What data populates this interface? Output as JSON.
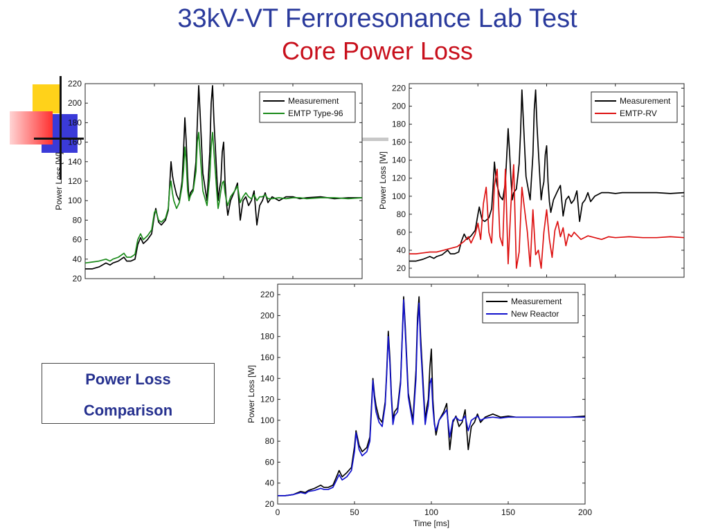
{
  "slide": {
    "title": "33kV-VT Ferroresonance Lab Test",
    "subtitle": "Core Power Loss",
    "callout_line1": "Power Loss",
    "callout_line2": "Comparison"
  },
  "colors": {
    "title": "#2a3a9c",
    "subtitle": "#c8101c",
    "measurement": "#000000",
    "emtp_type96": "#1a8a1a",
    "emtp_rv": "#dd1111",
    "new_reactor": "#1010cc"
  },
  "chart_data": [
    {
      "type": "line",
      "title": "",
      "xlabel": "",
      "ylabel": "Power Loss [W]",
      "xlim": [
        0,
        200
      ],
      "ylim": [
        20,
        220
      ],
      "yticks": [
        20,
        40,
        60,
        80,
        100,
        120,
        140,
        160,
        180,
        200,
        220
      ],
      "xticks": [],
      "legend": "top-right",
      "series": [
        {
          "name": "Measurement",
          "color": "#000000",
          "x": [
            0,
            5,
            10,
            15,
            18,
            20,
            24,
            28,
            30,
            33,
            36,
            38,
            40,
            42,
            45,
            48,
            50,
            51,
            53,
            55,
            58,
            60,
            61,
            62,
            63,
            64,
            66,
            68,
            70,
            71,
            72,
            73,
            74,
            75,
            76,
            78,
            80,
            81,
            82,
            83,
            85,
            88,
            90,
            91,
            92,
            93,
            95,
            96,
            97,
            98,
            99,
            100,
            101,
            102,
            103,
            105,
            108,
            110,
            112,
            114,
            116,
            118,
            120,
            122,
            124,
            126,
            128,
            130,
            132,
            135,
            140,
            145,
            150,
            155,
            160,
            170,
            180,
            190,
            200
          ],
          "y": [
            30,
            30,
            32,
            36,
            34,
            36,
            38,
            42,
            38,
            38,
            40,
            55,
            62,
            56,
            60,
            66,
            85,
            92,
            78,
            75,
            80,
            90,
            115,
            140,
            126,
            118,
            106,
            100,
            120,
            150,
            185,
            160,
            125,
            100,
            108,
            112,
            140,
            180,
            218,
            190,
            128,
            100,
            150,
            200,
            218,
            182,
            128,
            100,
            112,
            120,
            150,
            160,
            120,
            98,
            85,
            100,
            110,
            118,
            80,
            100,
            104,
            95,
            100,
            110,
            75,
            95,
            100,
            108,
            98,
            104,
            100,
            104,
            104,
            102,
            103,
            104,
            102,
            103,
            103
          ]
        },
        {
          "name": "EMTP Type-96",
          "color": "#1a8a1a",
          "x": [
            0,
            5,
            10,
            15,
            18,
            20,
            24,
            28,
            30,
            33,
            36,
            38,
            40,
            42,
            45,
            48,
            50,
            51,
            53,
            55,
            58,
            60,
            61,
            62,
            63,
            64,
            66,
            68,
            70,
            71,
            72,
            73,
            74,
            75,
            76,
            78,
            80,
            81,
            82,
            83,
            85,
            88,
            90,
            91,
            92,
            93,
            95,
            96,
            97,
            98,
            99,
            100,
            101,
            102,
            103,
            105,
            108,
            110,
            112,
            114,
            116,
            118,
            120,
            122,
            124,
            126,
            128,
            130,
            132,
            135,
            140,
            145,
            150,
            155,
            160,
            170,
            180,
            190,
            200
          ],
          "y": [
            36,
            37,
            38,
            40,
            38,
            40,
            42,
            46,
            42,
            42,
            45,
            60,
            66,
            60,
            64,
            70,
            88,
            90,
            80,
            78,
            82,
            92,
            112,
            120,
            108,
            100,
            92,
            98,
            115,
            130,
            155,
            140,
            110,
            100,
            105,
            110,
            130,
            160,
            170,
            150,
            110,
            95,
            125,
            155,
            170,
            150,
            110,
            92,
            100,
            110,
            118,
            120,
            108,
            100,
            95,
            104,
            110,
            115,
            98,
            104,
            108,
            104,
            102,
            106,
            100,
            104,
            104,
            106,
            102,
            102,
            103,
            102,
            103,
            103,
            102,
            103,
            103,
            102,
            103
          ]
        }
      ]
    },
    {
      "type": "line",
      "title": "",
      "xlabel": "",
      "ylabel": "Power Loss [W]",
      "xlim": [
        0,
        200
      ],
      "ylim": [
        10,
        225
      ],
      "yticks": [
        20,
        40,
        60,
        80,
        100,
        120,
        140,
        160,
        180,
        200,
        220
      ],
      "xticks": [],
      "legend": "top-right",
      "series": [
        {
          "name": "Measurement",
          "color": "#000000",
          "x": [
            0,
            5,
            10,
            15,
            18,
            20,
            24,
            28,
            30,
            33,
            36,
            38,
            40,
            42,
            45,
            48,
            50,
            51,
            53,
            55,
            58,
            60,
            61,
            62,
            63,
            64,
            66,
            68,
            70,
            71,
            72,
            73,
            74,
            75,
            76,
            78,
            80,
            81,
            82,
            83,
            85,
            88,
            90,
            91,
            92,
            93,
            95,
            96,
            97,
            98,
            99,
            100,
            101,
            102,
            103,
            105,
            108,
            110,
            112,
            114,
            116,
            118,
            120,
            122,
            124,
            126,
            128,
            130,
            132,
            135,
            140,
            145,
            150,
            155,
            160,
            170,
            180,
            190,
            200
          ],
          "y": [
            28,
            28,
            30,
            33,
            31,
            33,
            35,
            40,
            36,
            36,
            38,
            50,
            58,
            52,
            56,
            62,
            80,
            88,
            74,
            72,
            76,
            86,
            110,
            138,
            122,
            112,
            100,
            96,
            115,
            145,
            175,
            150,
            120,
            96,
            104,
            108,
            136,
            170,
            218,
            186,
            122,
            96,
            146,
            196,
            218,
            178,
            122,
            96,
            108,
            116,
            146,
            156,
            116,
            94,
            82,
            96,
            106,
            112,
            78,
            96,
            100,
            92,
            96,
            106,
            72,
            92,
            96,
            104,
            94,
            100,
            104,
            104,
            103,
            104,
            104,
            104,
            104,
            103,
            104
          ]
        },
        {
          "name": "EMTP-RV",
          "color": "#dd1111",
          "x": [
            0,
            5,
            10,
            15,
            20,
            25,
            30,
            35,
            40,
            43,
            45,
            48,
            50,
            52,
            54,
            56,
            58,
            60,
            62,
            64,
            66,
            68,
            70,
            72,
            74,
            76,
            78,
            80,
            82,
            84,
            86,
            88,
            90,
            92,
            94,
            96,
            98,
            100,
            102,
            104,
            106,
            108,
            110,
            112,
            114,
            116,
            118,
            120,
            125,
            130,
            135,
            140,
            145,
            150,
            160,
            170,
            180,
            190,
            200
          ],
          "y": [
            36,
            36,
            37,
            38,
            38,
            40,
            42,
            44,
            50,
            55,
            48,
            58,
            70,
            52,
            92,
            110,
            60,
            48,
            112,
            130,
            55,
            45,
            130,
            25,
            90,
            135,
            20,
            38,
            110,
            85,
            60,
            22,
            85,
            35,
            40,
            20,
            60,
            85,
            52,
            32,
            62,
            72,
            55,
            65,
            45,
            58,
            55,
            60,
            52,
            56,
            54,
            52,
            55,
            54,
            55,
            54,
            54,
            55,
            54
          ]
        }
      ]
    },
    {
      "type": "line",
      "title": "",
      "xlabel": "Time [ms]",
      "ylabel": "Power Loss [W]",
      "xlim": [
        0,
        200
      ],
      "ylim": [
        20,
        230
      ],
      "yticks": [
        20,
        40,
        60,
        80,
        100,
        120,
        140,
        160,
        180,
        200,
        220
      ],
      "xticks": [
        0,
        50,
        100,
        150,
        200
      ],
      "legend": "top-right",
      "series": [
        {
          "name": "Measurement",
          "color": "#000000",
          "x": [
            0,
            5,
            10,
            15,
            18,
            20,
            24,
            28,
            30,
            33,
            36,
            38,
            40,
            42,
            45,
            48,
            50,
            51,
            53,
            55,
            58,
            60,
            61,
            62,
            63,
            64,
            66,
            68,
            70,
            71,
            72,
            73,
            74,
            75,
            76,
            78,
            80,
            81,
            82,
            83,
            85,
            88,
            90,
            91,
            92,
            93,
            95,
            96,
            97,
            98,
            99,
            100,
            101,
            102,
            103,
            105,
            108,
            110,
            112,
            114,
            116,
            118,
            120,
            122,
            124,
            126,
            128,
            130,
            132,
            135,
            140,
            145,
            150,
            155,
            160,
            170,
            180,
            190,
            200
          ],
          "y": [
            28,
            28,
            29,
            32,
            31,
            33,
            35,
            38,
            36,
            36,
            38,
            45,
            52,
            46,
            50,
            55,
            75,
            90,
            76,
            70,
            74,
            84,
            112,
            140,
            124,
            114,
            102,
            98,
            118,
            148,
            185,
            160,
            124,
            100,
            108,
            112,
            138,
            178,
            218,
            190,
            126,
            100,
            148,
            198,
            218,
            180,
            126,
            100,
            112,
            120,
            150,
            168,
            120,
            98,
            86,
            100,
            108,
            116,
            72,
            98,
            104,
            94,
            98,
            110,
            72,
            94,
            98,
            106,
            98,
            103,
            106,
            103,
            104,
            103,
            103,
            103,
            103,
            103,
            104
          ]
        },
        {
          "name": "New Reactor",
          "color": "#1010cc",
          "x": [
            0,
            5,
            10,
            15,
            18,
            20,
            24,
            28,
            30,
            33,
            36,
            38,
            40,
            42,
            45,
            48,
            50,
            51,
            53,
            55,
            58,
            60,
            61,
            62,
            63,
            64,
            66,
            68,
            70,
            71,
            72,
            73,
            74,
            75,
            76,
            78,
            80,
            81,
            82,
            83,
            85,
            88,
            90,
            91,
            92,
            93,
            95,
            96,
            97,
            98,
            99,
            100,
            101,
            102,
            103,
            105,
            108,
            110,
            112,
            114,
            116,
            118,
            120,
            122,
            124,
            126,
            128,
            130,
            132,
            135,
            140,
            145,
            150,
            155,
            160,
            170,
            180,
            190,
            200
          ],
          "y": [
            28,
            28,
            29,
            31,
            30,
            32,
            33,
            35,
            34,
            34,
            36,
            42,
            48,
            43,
            46,
            52,
            70,
            88,
            72,
            66,
            70,
            80,
            108,
            138,
            120,
            108,
            98,
            94,
            115,
            145,
            180,
            155,
            120,
            96,
            104,
            108,
            135,
            175,
            215,
            185,
            122,
            96,
            140,
            190,
            212,
            172,
            120,
            96,
            106,
            114,
            135,
            140,
            112,
            96,
            90,
            100,
            106,
            110,
            84,
            100,
            103,
            100,
            100,
            104,
            90,
            100,
            102,
            104,
            100,
            102,
            103,
            102,
            103,
            103,
            103,
            103,
            103,
            103,
            103
          ]
        }
      ]
    }
  ]
}
